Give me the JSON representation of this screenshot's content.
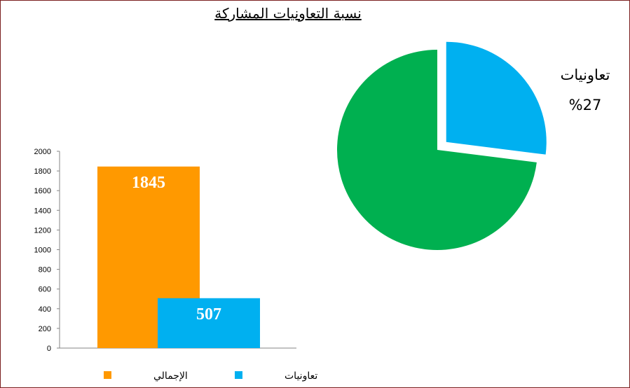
{
  "chart_data": [
    {
      "type": "bar",
      "title": "نسبة التعاونيات المشاركة",
      "categories": [
        "الإجمالي",
        "تعاونيات"
      ],
      "values": [
        1845,
        507
      ],
      "ylim": [
        0,
        2000
      ],
      "yticks": [
        "0",
        "200",
        "400",
        "600",
        "800",
        "1000",
        "1200",
        "1400",
        "1600",
        "1800",
        "2000"
      ],
      "data_labels": [
        "1845",
        "507"
      ],
      "colors": [
        "#ff9900",
        "#00b0f0"
      ],
      "grid": false,
      "legend_position": "bottom"
    },
    {
      "type": "pie",
      "slices": [
        {
          "name": "تعاونيات",
          "value": 27,
          "color": "#00b0f0",
          "label": "تعاونيات",
          "pct_label": "%27",
          "exploded": true
        },
        {
          "name": "",
          "value": 73,
          "color": "#00b050",
          "exploded": false
        }
      ]
    }
  ]
}
